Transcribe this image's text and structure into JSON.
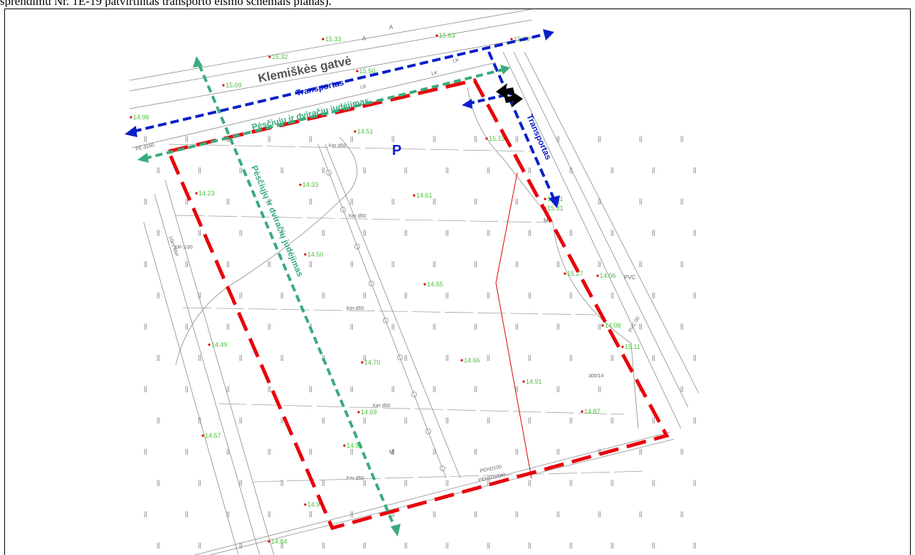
{
  "caption": "sprendimu Nr. 1E-19 patvirtintas transporto eismo schemais planas).",
  "street_label": "Klemiškės gatvė",
  "parking_label": "P",
  "arrows": {
    "transport_top": "Transportas",
    "transport_right": "Transportas",
    "pedestrian_top": "Pėsčiųjų ir dviračių judėjimas",
    "pedestrian_diag": "Pėsčiųjų ir dviračių judėjimas"
  },
  "colors": {
    "boundary": "#e8000b",
    "transport": "#0a1fc8",
    "pedestrian": "#3aab7c",
    "base_lines": "#8a8a8a",
    "elevation_text": "#4dc23b",
    "point_marker": "#e00000"
  },
  "elevations": [
    "15.33",
    "15.63",
    "15.56",
    "15.32",
    "15.50",
    "15.13",
    "14.51",
    "15.09",
    "14.96",
    "14.23",
    "14.33",
    "14.61",
    "14.50",
    "14.55",
    "15.31",
    "14.06",
    "14.08",
    "15.11",
    "14.49",
    "14.70",
    "14.66",
    "14.91",
    "14.57",
    "14.69",
    "14.87",
    "14.56",
    "14.97",
    "14.84",
    "15.21",
    "15.27"
  ],
  "utility_labels": [
    "Ker d50",
    "Ker d50",
    "Ker d50",
    "Ker d50",
    "Ker d50",
    "PE d160",
    "300/14",
    "LK",
    "LK",
    "LK",
    "PVC 00",
    "PEHD1x100",
    "PEHD100",
    "KR-1/30",
    "10kV Met"
  ],
  "map_labels": [
    "A",
    "A",
    "M",
    "M",
    "PVC"
  ]
}
